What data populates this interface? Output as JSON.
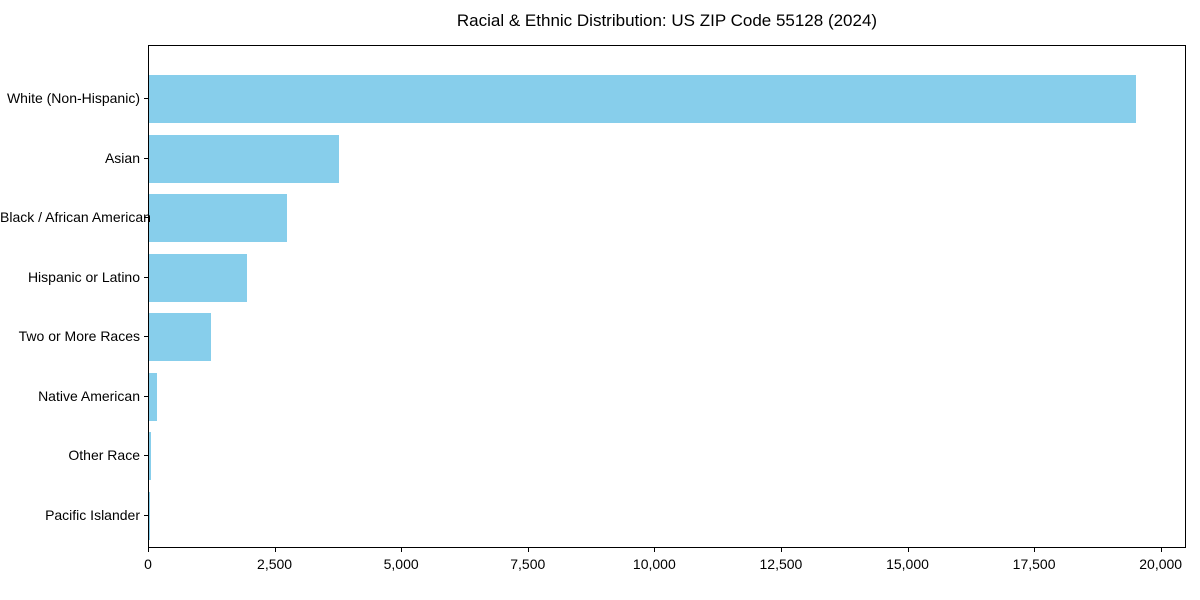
{
  "title": "Racial & Ethnic Distribution: US ZIP Code 55128 (2024)",
  "chart_data": {
    "type": "bar",
    "orientation": "horizontal",
    "title": "Racial & Ethnic Distribution: US ZIP Code 55128 (2024)",
    "categories": [
      "White (Non-Hispanic)",
      "Asian",
      "Black / African American",
      "Hispanic or Latino",
      "Two or More Races",
      "Native American",
      "Other Race",
      "Pacific Islander"
    ],
    "values": [
      19500,
      3760,
      2720,
      1930,
      1225,
      165,
      30,
      10
    ],
    "xlabel": "",
    "ylabel": "",
    "xlim": [
      0,
      20500
    ],
    "xticks": [
      {
        "value": 0,
        "label": "0"
      },
      {
        "value": 2500,
        "label": "2,500"
      },
      {
        "value": 5000,
        "label": "5,000"
      },
      {
        "value": 7500,
        "label": "7,500"
      },
      {
        "value": 10000,
        "label": "10,000"
      },
      {
        "value": 12500,
        "label": "12,500"
      },
      {
        "value": 15000,
        "label": "15,000"
      },
      {
        "value": 17500,
        "label": "17,500"
      },
      {
        "value": 20000,
        "label": "20,000"
      }
    ],
    "grid": false,
    "legend": "none",
    "bar_color": "#87CEEB",
    "axis_color": "#000000",
    "text_color": "#000000"
  }
}
